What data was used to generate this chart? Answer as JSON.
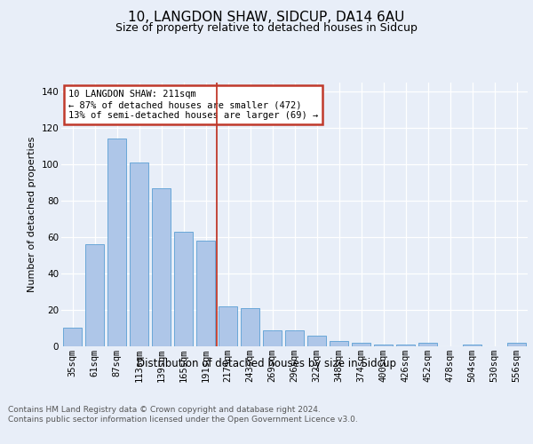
{
  "title1": "10, LANGDON SHAW, SIDCUP, DA14 6AU",
  "title2": "Size of property relative to detached houses in Sidcup",
  "xlabel": "Distribution of detached houses by size in Sidcup",
  "ylabel": "Number of detached properties",
  "categories": [
    "35sqm",
    "61sqm",
    "87sqm",
    "113sqm",
    "139sqm",
    "165sqm",
    "191sqm",
    "217sqm",
    "243sqm",
    "269sqm",
    "296sqm",
    "322sqm",
    "348sqm",
    "374sqm",
    "400sqm",
    "426sqm",
    "452sqm",
    "478sqm",
    "504sqm",
    "530sqm",
    "556sqm"
  ],
  "values": [
    10,
    56,
    114,
    101,
    87,
    63,
    58,
    22,
    21,
    9,
    9,
    6,
    3,
    2,
    1,
    1,
    2,
    0,
    1,
    0,
    2
  ],
  "bar_color": "#aec6e8",
  "bar_edge_color": "#5a9fd4",
  "reference_line_x": 6.5,
  "reference_line_color": "#c0392b",
  "annotation_text": "10 LANGDON SHAW: 211sqm\n← 87% of detached houses are smaller (472)\n13% of semi-detached houses are larger (69) →",
  "annotation_box_color": "#ffffff",
  "annotation_box_edge_color": "#c0392b",
  "ylim": [
    0,
    145
  ],
  "yticks": [
    0,
    20,
    40,
    60,
    80,
    100,
    120,
    140
  ],
  "footer_text": "Contains HM Land Registry data © Crown copyright and database right 2024.\nContains public sector information licensed under the Open Government Licence v3.0.",
  "bg_color": "#e8eef8",
  "plot_bg_color": "#e8eef8",
  "grid_color": "#ffffff",
  "title1_fontsize": 11,
  "title2_fontsize": 9,
  "xlabel_fontsize": 8.5,
  "ylabel_fontsize": 8,
  "tick_fontsize": 7.5,
  "footer_fontsize": 6.5,
  "annot_fontsize": 7.5
}
